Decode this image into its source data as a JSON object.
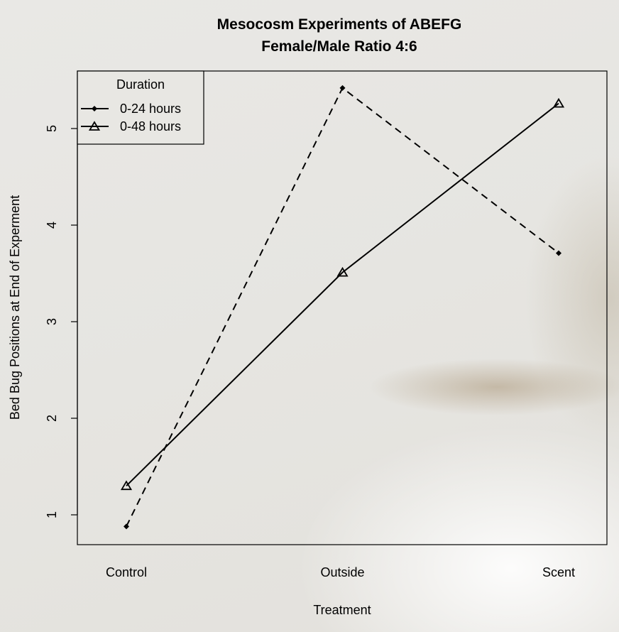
{
  "chart_data": {
    "type": "line",
    "title": "Mesocosm Experiments of ABEFG",
    "subtitle": "Female/Male Ratio 4:6",
    "xlabel": "Treatment",
    "ylabel": "Bed Bug Positions at End of Experment",
    "categories": [
      "Control",
      "Outside",
      "Scent"
    ],
    "yticks": [
      "1",
      "2",
      "3",
      "4",
      "5"
    ],
    "ylim": [
      0.69,
      5.6
    ],
    "grid": false,
    "legend": {
      "title": "Duration",
      "placement": "top-left"
    },
    "series": [
      {
        "name": "0-24 hours",
        "marker": "diamond",
        "line": "dashed",
        "values": [
          0.88,
          5.42,
          3.71
        ]
      },
      {
        "name": "0-48 hours",
        "marker": "triangle",
        "line": "solid",
        "values": [
          1.3,
          3.51,
          5.26
        ]
      }
    ]
  }
}
